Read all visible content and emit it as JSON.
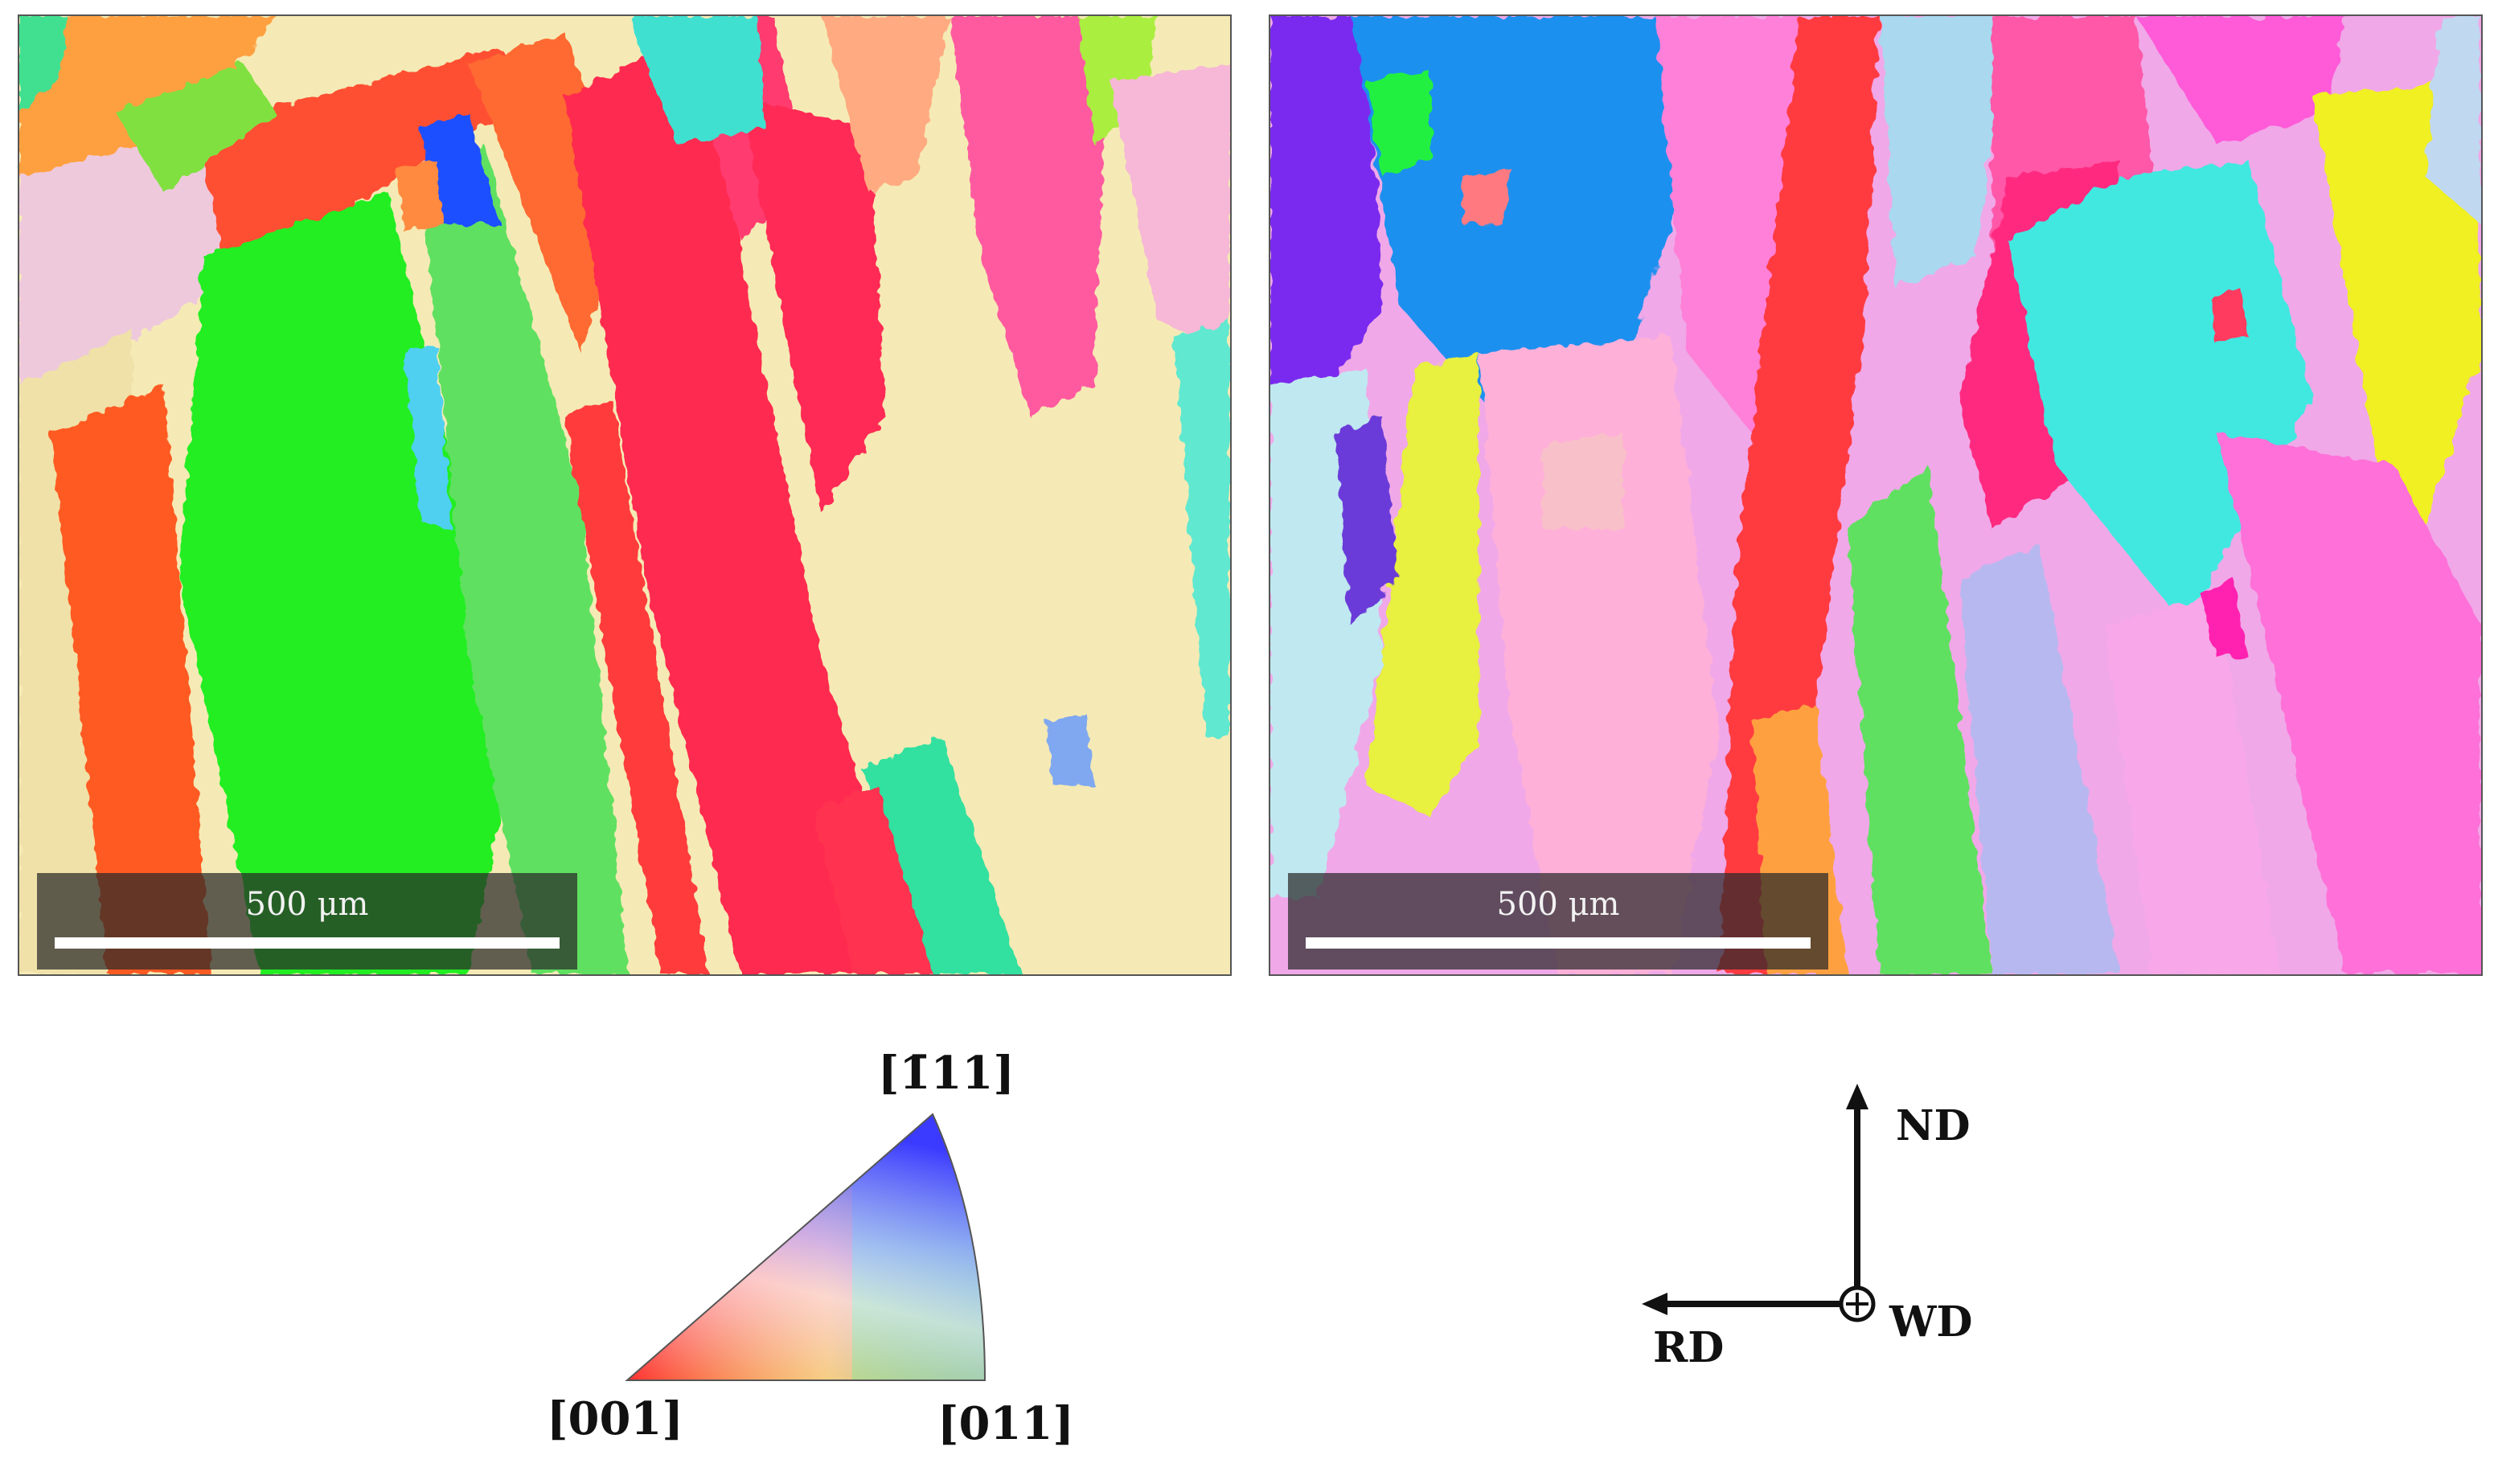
{
  "micrographs": [
    {
      "scale_label": "500 μm"
    },
    {
      "scale_label": "500 μm"
    }
  ],
  "ipf_legend": {
    "corner_top": "[1̄11]",
    "corner_left": "[001]",
    "corner_right": "[011]",
    "colors": {
      "001": "#ff1a1a",
      "011": "#22dd22",
      "111": "#3b3bff"
    }
  },
  "axes_triad": {
    "up_label": "ND",
    "left_label": "RD",
    "out_label": "WD"
  }
}
